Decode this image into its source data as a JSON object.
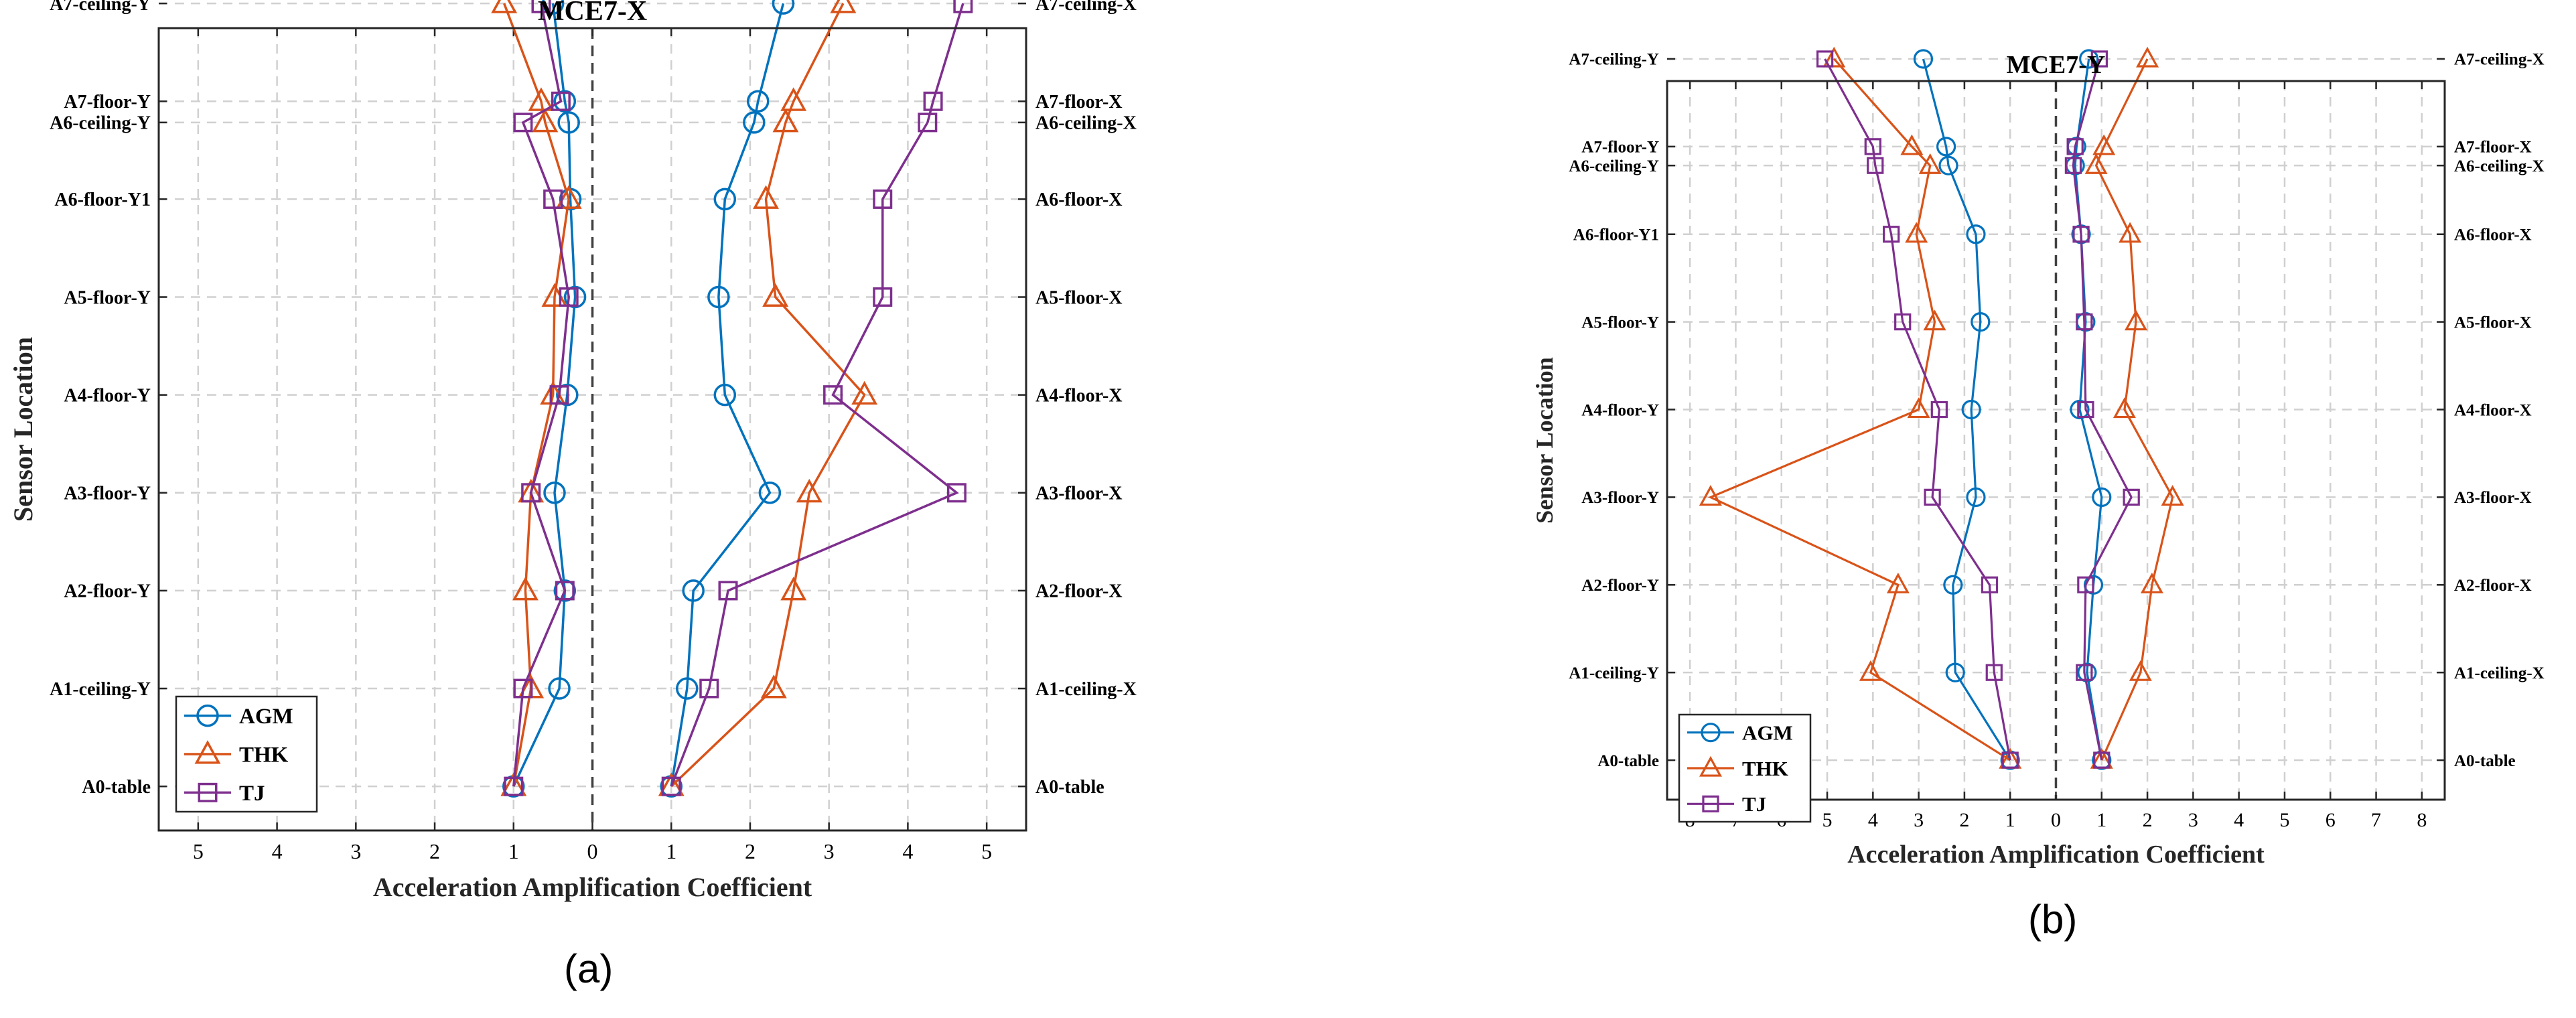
{
  "chart_data": [
    {
      "id": "a",
      "type": "line",
      "title": "MCE7-X",
      "xlabel": "Acceleration Amplification Coefficient",
      "ylabel": "Sensor Location",
      "panel_label": "(a)",
      "xlim": [
        -5.5,
        5.5
      ],
      "x_ticks": [
        -5,
        -4,
        -3,
        -2,
        -1,
        0,
        1,
        2,
        3,
        4,
        5
      ],
      "x_tick_labels": [
        "5",
        "4",
        "3",
        "2",
        "1",
        "0",
        "1",
        "2",
        "3",
        "4",
        "5"
      ],
      "ylim": [
        -0.5,
        8.6
      ],
      "grid": true,
      "legend_position": "bottom-left",
      "levels": [
        0,
        1.11,
        2.22,
        3.33,
        4.44,
        5.55,
        6.66,
        7.53,
        7.77,
        8.88
      ],
      "left_labels": [
        "A0-table",
        "A1-ceiling-Y",
        "A2-floor-Y",
        "A3-floor-Y",
        "A4-floor-Y",
        "A5-floor-Y",
        "A6-floor-Y1",
        "A6-ceiling-Y",
        "A7-floor-Y",
        "A7-ceiling-Y"
      ],
      "right_labels": [
        "A0-table",
        "A1-ceiling-X",
        "A2-floor-X",
        "A3-floor-X",
        "A4-floor-X",
        "A5-floor-X",
        "A6-floor-X",
        "A6-ceiling-X",
        "A7-floor-X",
        "A7-ceiling-X"
      ],
      "series": [
        {
          "name": "AGM",
          "color": "#0072BD",
          "marker": "circle",
          "left": [
            1.0,
            0.42,
            0.35,
            0.48,
            0.32,
            0.22,
            0.28,
            0.3,
            0.35,
            0.5
          ],
          "right": [
            1.0,
            1.2,
            1.28,
            2.25,
            1.68,
            1.6,
            1.68,
            2.05,
            2.1,
            2.42
          ]
        },
        {
          "name": "THK",
          "color": "#D95319",
          "marker": "triangle",
          "left": [
            1.0,
            0.78,
            0.85,
            0.78,
            0.5,
            0.48,
            0.3,
            0.6,
            0.65,
            1.12
          ],
          "right": [
            1.0,
            2.3,
            2.55,
            2.75,
            3.45,
            2.32,
            2.2,
            2.45,
            2.55,
            3.18
          ]
        },
        {
          "name": "TJ",
          "color": "#7E2F8E",
          "marker": "square",
          "left": [
            1.0,
            0.88,
            0.35,
            0.78,
            0.42,
            0.3,
            0.5,
            0.88,
            0.4,
            0.65
          ],
          "right": [
            1.0,
            1.48,
            1.72,
            4.62,
            3.05,
            3.68,
            3.68,
            4.25,
            4.32,
            4.7
          ]
        }
      ]
    },
    {
      "id": "b",
      "type": "line",
      "title": "MCE7-Y",
      "xlabel": "Acceleration Amplification Coefficient",
      "ylabel": "Sensor Location",
      "panel_label": "(b)",
      "xlim": [
        -8.5,
        8.5
      ],
      "x_ticks": [
        -8,
        -7,
        -6,
        -5,
        -4,
        -3,
        -2,
        -1,
        0,
        1,
        2,
        3,
        4,
        5,
        6,
        7,
        8
      ],
      "x_tick_labels": [
        "8",
        "7",
        "6",
        "5",
        "4",
        "3",
        "2",
        "1",
        "0",
        "1",
        "2",
        "3",
        "4",
        "5",
        "6",
        "7",
        "8"
      ],
      "ylim": [
        -0.5,
        8.6
      ],
      "grid": true,
      "legend_position": "bottom-left",
      "levels": [
        0,
        1.11,
        2.22,
        3.33,
        4.44,
        5.55,
        6.66,
        7.53,
        7.77,
        8.88
      ],
      "left_labels": [
        "A0-table",
        "A1-ceiling-Y",
        "A2-floor-Y",
        "A3-floor-Y",
        "A4-floor-Y",
        "A5-floor-Y",
        "A6-floor-Y1",
        "A6-ceiling-Y",
        "A7-floor-Y",
        "A7-ceiling-Y"
      ],
      "right_labels": [
        "A0-table",
        "A1-ceiling-X",
        "A2-floor-X",
        "A3-floor-X",
        "A4-floor-X",
        "A5-floor-X",
        "A6-floor-X",
        "A6-ceiling-X",
        "A7-floor-X",
        "A7-ceiling-X"
      ],
      "series": [
        {
          "name": "AGM",
          "color": "#0072BD",
          "marker": "circle",
          "left": [
            1.0,
            2.2,
            2.25,
            1.75,
            1.85,
            1.65,
            1.75,
            2.35,
            2.4,
            2.9
          ],
          "right": [
            1.0,
            0.68,
            0.82,
            1.0,
            0.52,
            0.65,
            0.55,
            0.42,
            0.45,
            0.72
          ]
        },
        {
          "name": "THK",
          "color": "#D95319",
          "marker": "triangle",
          "left": [
            1.0,
            4.05,
            3.45,
            7.55,
            3.0,
            2.65,
            3.05,
            2.75,
            3.15,
            4.85
          ],
          "right": [
            1.0,
            1.85,
            2.1,
            2.55,
            1.5,
            1.75,
            1.62,
            0.88,
            1.05,
            2.0
          ]
        },
        {
          "name": "TJ",
          "color": "#7E2F8E",
          "marker": "square",
          "left": [
            1.0,
            1.35,
            1.45,
            2.7,
            2.55,
            3.35,
            3.6,
            3.95,
            4.0,
            5.05
          ],
          "right": [
            1.0,
            0.62,
            0.65,
            1.65,
            0.65,
            0.62,
            0.55,
            0.38,
            0.42,
            0.95
          ]
        }
      ]
    }
  ]
}
